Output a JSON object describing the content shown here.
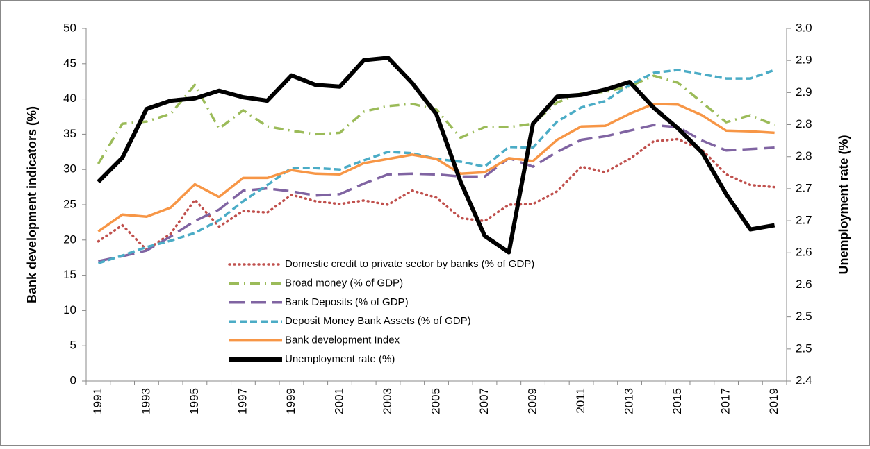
{
  "chart_data": {
    "type": "line",
    "y_label": "Bank development indicators (%)",
    "y2_label": "Unemployment rate (%)",
    "categories": [
      "1991",
      null,
      "1993",
      null,
      "1995",
      null,
      "1997",
      null,
      "1999",
      null,
      "2001",
      null,
      "2003",
      null,
      "2005",
      null,
      "2007",
      null,
      "2009",
      null,
      "2011",
      null,
      "2013",
      null,
      "2015",
      null,
      "2017",
      null,
      "2019"
    ],
    "ylim": [
      0,
      50
    ],
    "yticks": [
      0,
      5,
      10,
      15,
      20,
      25,
      30,
      35,
      40,
      45,
      50
    ],
    "y2lim": [
      2.4,
      3
    ],
    "y2ticks": [
      2.4,
      {
        "value": 2.4545,
        "label": "2.5"
      },
      {
        "value": 2.5091,
        "label": "2.5"
      },
      {
        "value": 2.5636,
        "label": "2.6"
      },
      {
        "value": 2.6182,
        "label": "2.6"
      },
      {
        "value": 2.6727,
        "label": "2.7"
      },
      {
        "value": 2.7273,
        "label": "2.7"
      },
      {
        "value": 2.7818,
        "label": "2.8"
      },
      {
        "value": 2.8364,
        "label": "2.8"
      },
      {
        "value": 2.8909,
        "label": "2.9"
      },
      {
        "value": 2.9455,
        "label": "2.9"
      },
      {
        "value": 3,
        "label": "3.0"
      }
    ],
    "grid": false,
    "legend_position": "center",
    "series": [
      {
        "name": "Domestic credit to private sector by banks (% of GDP)",
        "color": "#c0504d",
        "line_style": "dotted",
        "values": [
          19.8,
          22.1,
          18.6,
          20.9,
          25.7,
          21.9,
          24.1,
          23.9,
          26.4,
          25.5,
          25.1,
          25.6,
          25.0,
          27.0,
          26.0,
          23.1,
          22.7,
          25.0,
          25.1,
          26.9,
          30.4,
          29.6,
          31.5,
          34.0,
          34.3,
          32.8,
          29.3,
          27.8,
          27.5
        ]
      },
      {
        "name": "Broad money (% of GDP)",
        "color": "#9bbb59",
        "line_style": "dash-dot",
        "values": [
          30.8,
          36.5,
          36.8,
          37.9,
          42.0,
          35.8,
          38.4,
          36.1,
          35.5,
          35.0,
          35.2,
          38.2,
          39.0,
          39.3,
          38.5,
          34.5,
          36.0,
          36.0,
          36.5,
          39.5,
          40.8,
          41.0,
          41.8,
          43.3,
          42.3,
          39.5,
          36.7,
          37.7,
          36.3
        ]
      },
      {
        "name": "Bank Deposits (% of GDP)",
        "color": "#8064a2",
        "line_style": "long-dash",
        "values": [
          17.0,
          17.7,
          18.5,
          20.5,
          22.7,
          24.3,
          27.0,
          27.3,
          26.9,
          26.3,
          26.5,
          28.0,
          29.3,
          29.4,
          29.3,
          29.0,
          29.0,
          31.6,
          30.4,
          32.5,
          34.2,
          34.7,
          35.5,
          36.3,
          36.0,
          34.1,
          32.7,
          32.9,
          33.1
        ]
      },
      {
        "name": "Deposit Money Bank Assets (% of GDP)",
        "color": "#4bacc6",
        "line_style": "dash",
        "values": [
          16.7,
          17.8,
          19.0,
          19.9,
          21.0,
          22.8,
          25.5,
          27.8,
          30.2,
          30.2,
          30.0,
          31.3,
          32.5,
          32.3,
          31.5,
          31.1,
          30.4,
          33.2,
          33.1,
          36.8,
          38.8,
          39.7,
          42.0,
          43.7,
          44.1,
          43.5,
          42.9,
          42.9,
          44.1
        ]
      },
      {
        "name": "Bank development Index",
        "color": "#f79646",
        "line_style": "solid",
        "values": [
          21.2,
          23.6,
          23.3,
          24.6,
          27.9,
          26.1,
          28.8,
          28.8,
          29.9,
          29.4,
          29.3,
          30.9,
          31.5,
          32.1,
          31.5,
          29.4,
          29.6,
          31.6,
          31.2,
          34.2,
          36.1,
          36.2,
          37.9,
          39.3,
          39.2,
          37.7,
          35.5,
          35.4,
          35.2
        ]
      },
      {
        "name": "Unemployment rate (%)",
        "color": "#000000",
        "line_style": "solid",
        "axis": "y2",
        "values": [
          2.739,
          2.78,
          2.863,
          2.877,
          2.881,
          2.894,
          2.883,
          2.877,
          2.92,
          2.904,
          2.901,
          2.946,
          2.95,
          2.907,
          2.854,
          2.739,
          2.647,
          2.619,
          2.838,
          2.884,
          2.887,
          2.896,
          2.909,
          2.865,
          2.83,
          2.789,
          2.718,
          2.658,
          2.665
        ]
      }
    ]
  }
}
